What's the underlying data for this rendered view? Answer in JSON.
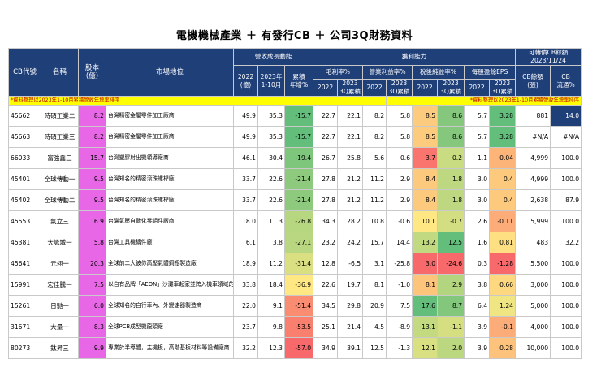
{
  "title": "電機機械產業 ＋ 有發行CB ＋ 公司3Q財務資料",
  "header": {
    "cb_code": "CB代號",
    "name": "名稱",
    "capital": "股本\n(億)",
    "position": "市場地位",
    "revenue_group": "營收成長動能",
    "profit_group": "獲利能力",
    "cb_group": "可轉債CB餘額\n2023/11/24",
    "rev_2022": "2022\n(億)",
    "rev_2023": "2023年\n1-10月",
    "rev_cagr": "累積\n年增%",
    "gm": "毛利率%",
    "om": "營業利益率%",
    "nm": "稅後純益率%",
    "eps": "每股盈餘EPS",
    "cb_balance": "CB餘額\n(張)",
    "cb_float": "CB\n流通%",
    "y2022": "2022",
    "y2023_3q": "2023\n3Q累積"
  },
  "notes": {
    "left": "*資料整理以2023年1-10月累積營收年增率排序",
    "right": "*資料整理以2023年1-10月累積營收年增率排序"
  },
  "colors": {
    "header_bg": "#1f3f78",
    "pink": "#e867e6",
    "note_bg": "#ffff00",
    "note_text": "#c00000"
  },
  "rows": [
    {
      "code": "45662",
      "name": "時碩工業二",
      "cap": "8.2",
      "pos": "台灣精密金屬零件加工廠商",
      "r22": "49.9",
      "r23": "35.3",
      "cagr": "-15.7",
      "gm22": "22.7",
      "gm23": "22.1",
      "om22": "8.2",
      "om23": "5.8",
      "nm22": "8.5",
      "nm23": "8.6",
      "eps22": "5.7",
      "eps23": "3.28",
      "cb": "881",
      "fl": "14.0"
    },
    {
      "code": "45663",
      "name": "時碩工業三",
      "cap": "8.2",
      "pos": "台灣精密金屬零件加工廠商",
      "r22": "49.9",
      "r23": "35.3",
      "cagr": "-15.7",
      "gm22": "22.7",
      "gm23": "22.1",
      "om22": "8.2",
      "om23": "5.8",
      "nm22": "8.5",
      "nm23": "8.6",
      "eps22": "5.7",
      "eps23": "3.28",
      "cb": "#N/A",
      "fl": "#N/A"
    },
    {
      "code": "66033",
      "name": "富強鑫三",
      "cap": "15.7",
      "pos": "台灣塑膠射出機領導廠商",
      "r22": "46.1",
      "r23": "30.4",
      "cagr": "-19.4",
      "gm22": "26.7",
      "gm23": "25.8",
      "om22": "5.6",
      "om23": "0.6",
      "nm22": "3.7",
      "nm23": "0.2",
      "eps22": "1.1",
      "eps23": "0.04",
      "cb": "4,999",
      "fl": "100.0"
    },
    {
      "code": "45401",
      "name": "全球傳動一",
      "cap": "9.5",
      "pos": "台灣知名的精密滾珠螺桿廠",
      "r22": "33.7",
      "r23": "22.6",
      "cagr": "-21.4",
      "gm22": "27.8",
      "gm23": "21.2",
      "om22": "11.2",
      "om23": "2.9",
      "nm22": "8.4",
      "nm23": "1.8",
      "eps22": "3.0",
      "eps23": "0.4",
      "cb": "4,999",
      "fl": "100.0"
    },
    {
      "code": "45402",
      "name": "全球傳動二",
      "cap": "9.5",
      "pos": "台灣知名的精密滾珠螺桿廠",
      "r22": "33.7",
      "r23": "22.6",
      "cagr": "-21.4",
      "gm22": "27.8",
      "gm23": "21.2",
      "om22": "11.2",
      "om23": "2.9",
      "nm22": "8.4",
      "nm23": "1.8",
      "eps22": "3.0",
      "eps23": "0.4",
      "cb": "2,638",
      "fl": "87.9"
    },
    {
      "code": "45553",
      "name": "氣立三",
      "cap": "6.9",
      "pos": "台灣氣壓自動化零組件廠商",
      "r22": "18.0",
      "r23": "11.3",
      "cagr": "-26.8",
      "gm22": "34.3",
      "gm23": "28.2",
      "om22": "10.8",
      "om23": "-0.6",
      "nm22": "10.1",
      "nm23": "-0.7",
      "eps22": "2.6",
      "eps23": "-0.11",
      "cb": "5,999",
      "fl": "100.0"
    },
    {
      "code": "45381",
      "name": "大詠城一",
      "cap": "5.8",
      "pos": "台灣工具機鑄件廠",
      "r22": "6.1",
      "r23": "3.8",
      "cagr": "-27.1",
      "gm22": "23.2",
      "gm23": "24.2",
      "om22": "15.7",
      "om23": "14.4",
      "nm22": "13.2",
      "nm23": "12.5",
      "eps22": "1.6",
      "eps23": "0.81",
      "cb": "483",
      "fl": "32.2"
    },
    {
      "code": "45641",
      "name": "元翎一",
      "cap": "20.3",
      "pos": "全球前二大彼你高壓氣體鋼瓶製造廠",
      "r22": "18.9",
      "r23": "11.2",
      "cagr": "-31.4",
      "gm22": "12.8",
      "gm23": "-6.5",
      "om22": "3.1",
      "om23": "-25.8",
      "nm22": "3.0",
      "nm23": "-24.6",
      "eps22": "0.3",
      "eps23": "-1.28",
      "cb": "5,500",
      "fl": "100.0"
    },
    {
      "code": "15991",
      "name": "宏佳騰一",
      "cap": "7.5",
      "pos": "以自有品牌「AEON」沙灘車起家並跨入機車領域的業者",
      "r22": "33.8",
      "r23": "18.4",
      "cagr": "-36.9",
      "gm22": "22.6",
      "gm23": "19.7",
      "om22": "8.1",
      "om23": "-1.0",
      "nm22": "8.1",
      "nm23": "2.9",
      "eps22": "3.8",
      "eps23": "0.66",
      "cb": "3,000",
      "fl": "100.0"
    },
    {
      "code": "15261",
      "name": "日馳一",
      "cap": "6.0",
      "pos": "全球知名的自行車內、外變速器製造商",
      "r22": "22.0",
      "r23": "9.1",
      "cagr": "-51.4",
      "gm22": "34.5",
      "gm23": "29.8",
      "om22": "20.9",
      "om23": "7.5",
      "nm22": "17.6",
      "nm23": "8.7",
      "eps22": "6.4",
      "eps23": "1.24",
      "cb": "5,000",
      "fl": "100.0"
    },
    {
      "code": "31671",
      "name": "大量一",
      "cap": "8.3",
      "pos": "全球PCB成型機龍頭廠",
      "r22": "23.7",
      "r23": "9.8",
      "cagr": "-53.5",
      "gm22": "25.1",
      "gm23": "21.4",
      "om22": "4.5",
      "om23": "-8.9",
      "nm22": "13.1",
      "nm23": "-1.1",
      "eps22": "3.9",
      "eps23": "-0.1",
      "cb": "4,000",
      "fl": "100.0"
    },
    {
      "code": "80273",
      "name": "鈦昇三",
      "cap": "9.9",
      "pos": "專業於半導體，主機板，高階基板材料等設備廠商",
      "r22": "32.2",
      "r23": "12.3",
      "cagr": "-57.0",
      "gm22": "34.9",
      "gm23": "39.1",
      "om22": "12.5",
      "om23": "-1.3",
      "nm22": "12.1",
      "nm23": "2.0",
      "eps22": "3.9",
      "eps23": "0.28",
      "cb": "10,000",
      "fl": "100.0"
    }
  ]
}
